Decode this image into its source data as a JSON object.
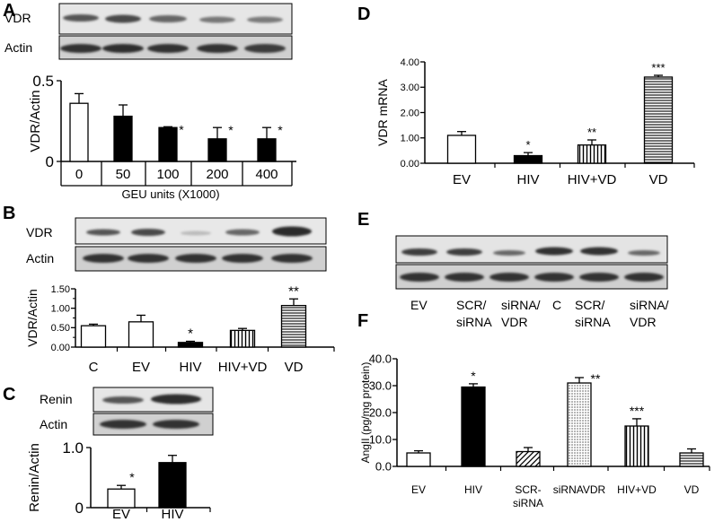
{
  "panels": [
    {
      "id": "A",
      "letter": "A",
      "blot_labels": [
        "VDR",
        "Actin"
      ],
      "chart_data": {
        "type": "bar",
        "ylabel": "VDR/Actin",
        "xlabel": "GEU units (X1000)",
        "categories": [
          "0",
          "50",
          "100",
          "200",
          "400"
        ],
        "values": [
          0.36,
          0.28,
          0.21,
          0.14,
          0.14
        ],
        "errors": [
          0.06,
          0.07,
          0.005,
          0.07,
          0.07
        ],
        "significance": [
          "",
          "",
          "*",
          "*",
          "*"
        ],
        "fills": [
          "white",
          "black",
          "black",
          "black",
          "black"
        ],
        "ylim": [
          0,
          0.5
        ],
        "yticks": [
          "0",
          "0.5"
        ]
      }
    },
    {
      "id": "B",
      "letter": "B",
      "blot_labels": [
        "VDR",
        "Actin"
      ],
      "chart_data": {
        "type": "bar",
        "ylabel": "VDR/Actin",
        "categories": [
          "C",
          "EV",
          "HIV",
          "HIV+VD",
          "VD"
        ],
        "values": [
          0.55,
          0.65,
          0.12,
          0.43,
          1.07
        ],
        "errors": [
          0.04,
          0.17,
          0.03,
          0.05,
          0.17
        ],
        "significance": [
          "",
          "",
          "*",
          "",
          "**"
        ],
        "fills": [
          "white",
          "white",
          "black",
          "vlines",
          "hlines"
        ],
        "ylim": [
          0,
          1.5
        ],
        "yticks": [
          "0.00",
          "0.50",
          "1.00",
          "1.50"
        ],
        "yticks_minor": [
          "0.25",
          "0.75",
          "1.25"
        ]
      }
    },
    {
      "id": "C",
      "letter": "C",
      "blot_labels": [
        "Renin",
        "Actin"
      ],
      "chart_data": {
        "type": "bar",
        "ylabel": "Renin/Actin",
        "categories": [
          "EV",
          "HIV"
        ],
        "values": [
          0.31,
          0.75
        ],
        "errors": [
          0.06,
          0.12
        ],
        "significance": [
          "*",
          ""
        ],
        "fills": [
          "white",
          "black"
        ],
        "ylim": [
          0,
          1.0
        ],
        "yticks": [
          "0",
          "1.0"
        ]
      }
    },
    {
      "id": "D",
      "letter": "D",
      "chart_data": {
        "type": "bar",
        "ylabel": "VDR mRNA",
        "categories": [
          "EV",
          "HIV",
          "HIV+VD",
          "VD"
        ],
        "values": [
          1.1,
          0.3,
          0.72,
          3.4
        ],
        "errors": [
          0.15,
          0.12,
          0.2,
          0.07
        ],
        "significance": [
          "",
          "*",
          "**",
          "***"
        ],
        "fills": [
          "white",
          "black",
          "vlines",
          "hlines"
        ],
        "ylim": [
          0,
          4.0
        ],
        "yticks": [
          "0.00",
          "1.00",
          "2.00",
          "3.00",
          "4.00"
        ]
      }
    },
    {
      "id": "E",
      "letter": "E",
      "lane_labels_top": [
        "EV",
        "SCR/",
        "siRNA/",
        "C",
        "SCR/",
        "siRNA/"
      ],
      "lane_labels_bottom": [
        "siRNA",
        "VDR",
        "siRNA",
        "VDR"
      ]
    },
    {
      "id": "F",
      "letter": "F",
      "chart_data": {
        "type": "bar",
        "ylabel": "AngII (pg/mg protein)",
        "categories": [
          "EV",
          "HIV",
          "SCR-\nsiRNA",
          "siRNAVDR",
          "HIV+VD",
          "VD"
        ],
        "category_lines": [
          [
            "EV"
          ],
          [
            "HIV"
          ],
          [
            "SCR-",
            "siRNA"
          ],
          [
            "siRNAVDR"
          ],
          [
            "HIV+VD"
          ],
          [
            "VD"
          ]
        ],
        "values": [
          5.0,
          29.5,
          5.5,
          31.0,
          15.0,
          5.0
        ],
        "errors": [
          0.8,
          1.2,
          1.5,
          2.0,
          2.7,
          1.5
        ],
        "significance": [
          "",
          "*",
          "",
          "**",
          "***",
          ""
        ],
        "fills": [
          "white",
          "black",
          "diag",
          "dots",
          "vlines",
          "hlines"
        ],
        "ylim": [
          0,
          40
        ],
        "yticks": [
          "0.0",
          "10.0",
          "20.0",
          "30.0",
          "40.0"
        ]
      }
    }
  ]
}
